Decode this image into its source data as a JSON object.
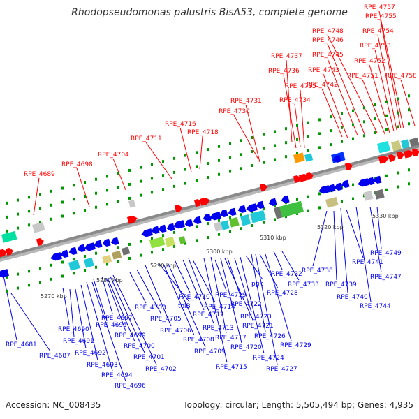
{
  "title": "Rhodopseudomonas palustris BisA53, complete genome",
  "footer": {
    "accession": "Accession: NC_008435",
    "summary": "Topology: circular; Length: 5,505,494 bp; Genes: 4,935"
  },
  "ticks": [
    "5270 kbp",
    "5280 kbp",
    "5290 kbp",
    "5300 kbp",
    "5310 kbp",
    "5320 kbp",
    "5330 kbp"
  ],
  "top_labels": [
    "RPE_4689",
    "RPE_4698",
    "RPE_4704",
    "RPE_4711",
    "RPE_4716",
    "RPE_4718",
    "RPE_4730",
    "RPE_4731",
    "RPE_4734",
    "RPE_4735",
    "RPE_4736",
    "RPE_4737",
    "RPE_4742",
    "RPE_4743",
    "RPE_4745",
    "RPE_4746",
    "RPE_4748",
    "RPE_4751",
    "RPE_4752",
    "RPE_4753",
    "RPE_4754",
    "RPE_4755",
    "RPE_4757",
    "RPE_4758"
  ],
  "bottom_labels": [
    "RPE_4681",
    "RPE_4687",
    "RPE_4690",
    "RPE_4691",
    "RPE_4692",
    "RPE_4693",
    "RPE_4694",
    "RPE_4695",
    "RPE_4696",
    "RPE_4697",
    "RPE_4699",
    "RPE_4700",
    "RPE_4701",
    "RPE_4702",
    "RPE_4703",
    "RPE_4705",
    "RPE_4706",
    "tolB",
    "RPE_4708",
    "RPE_4709",
    "RPE_4710",
    "RPE_4712",
    "RPE_4713",
    "RPE_4714",
    "RPE_4715",
    "RPE_4717",
    "RPE_4719",
    "RPE_4720",
    "RPE_4721",
    "RPE_4722",
    "RPE_4723",
    "RPE_4724",
    "pgk",
    "RPE_4726",
    "RPE_4727",
    "RPE_4728",
    "RPE_4729",
    "RPE_4732",
    "RPE_4733",
    "RPE_4738",
    "RPE_4739",
    "RPE_4740",
    "RPE_4741",
    "RPE_4744",
    "RPE_4747",
    "RPE_4749"
  ],
  "colors": {
    "forward": "#ff0000",
    "reverse": "#0000ee",
    "axis": "#8a8a8a",
    "tick": "#009900"
  }
}
